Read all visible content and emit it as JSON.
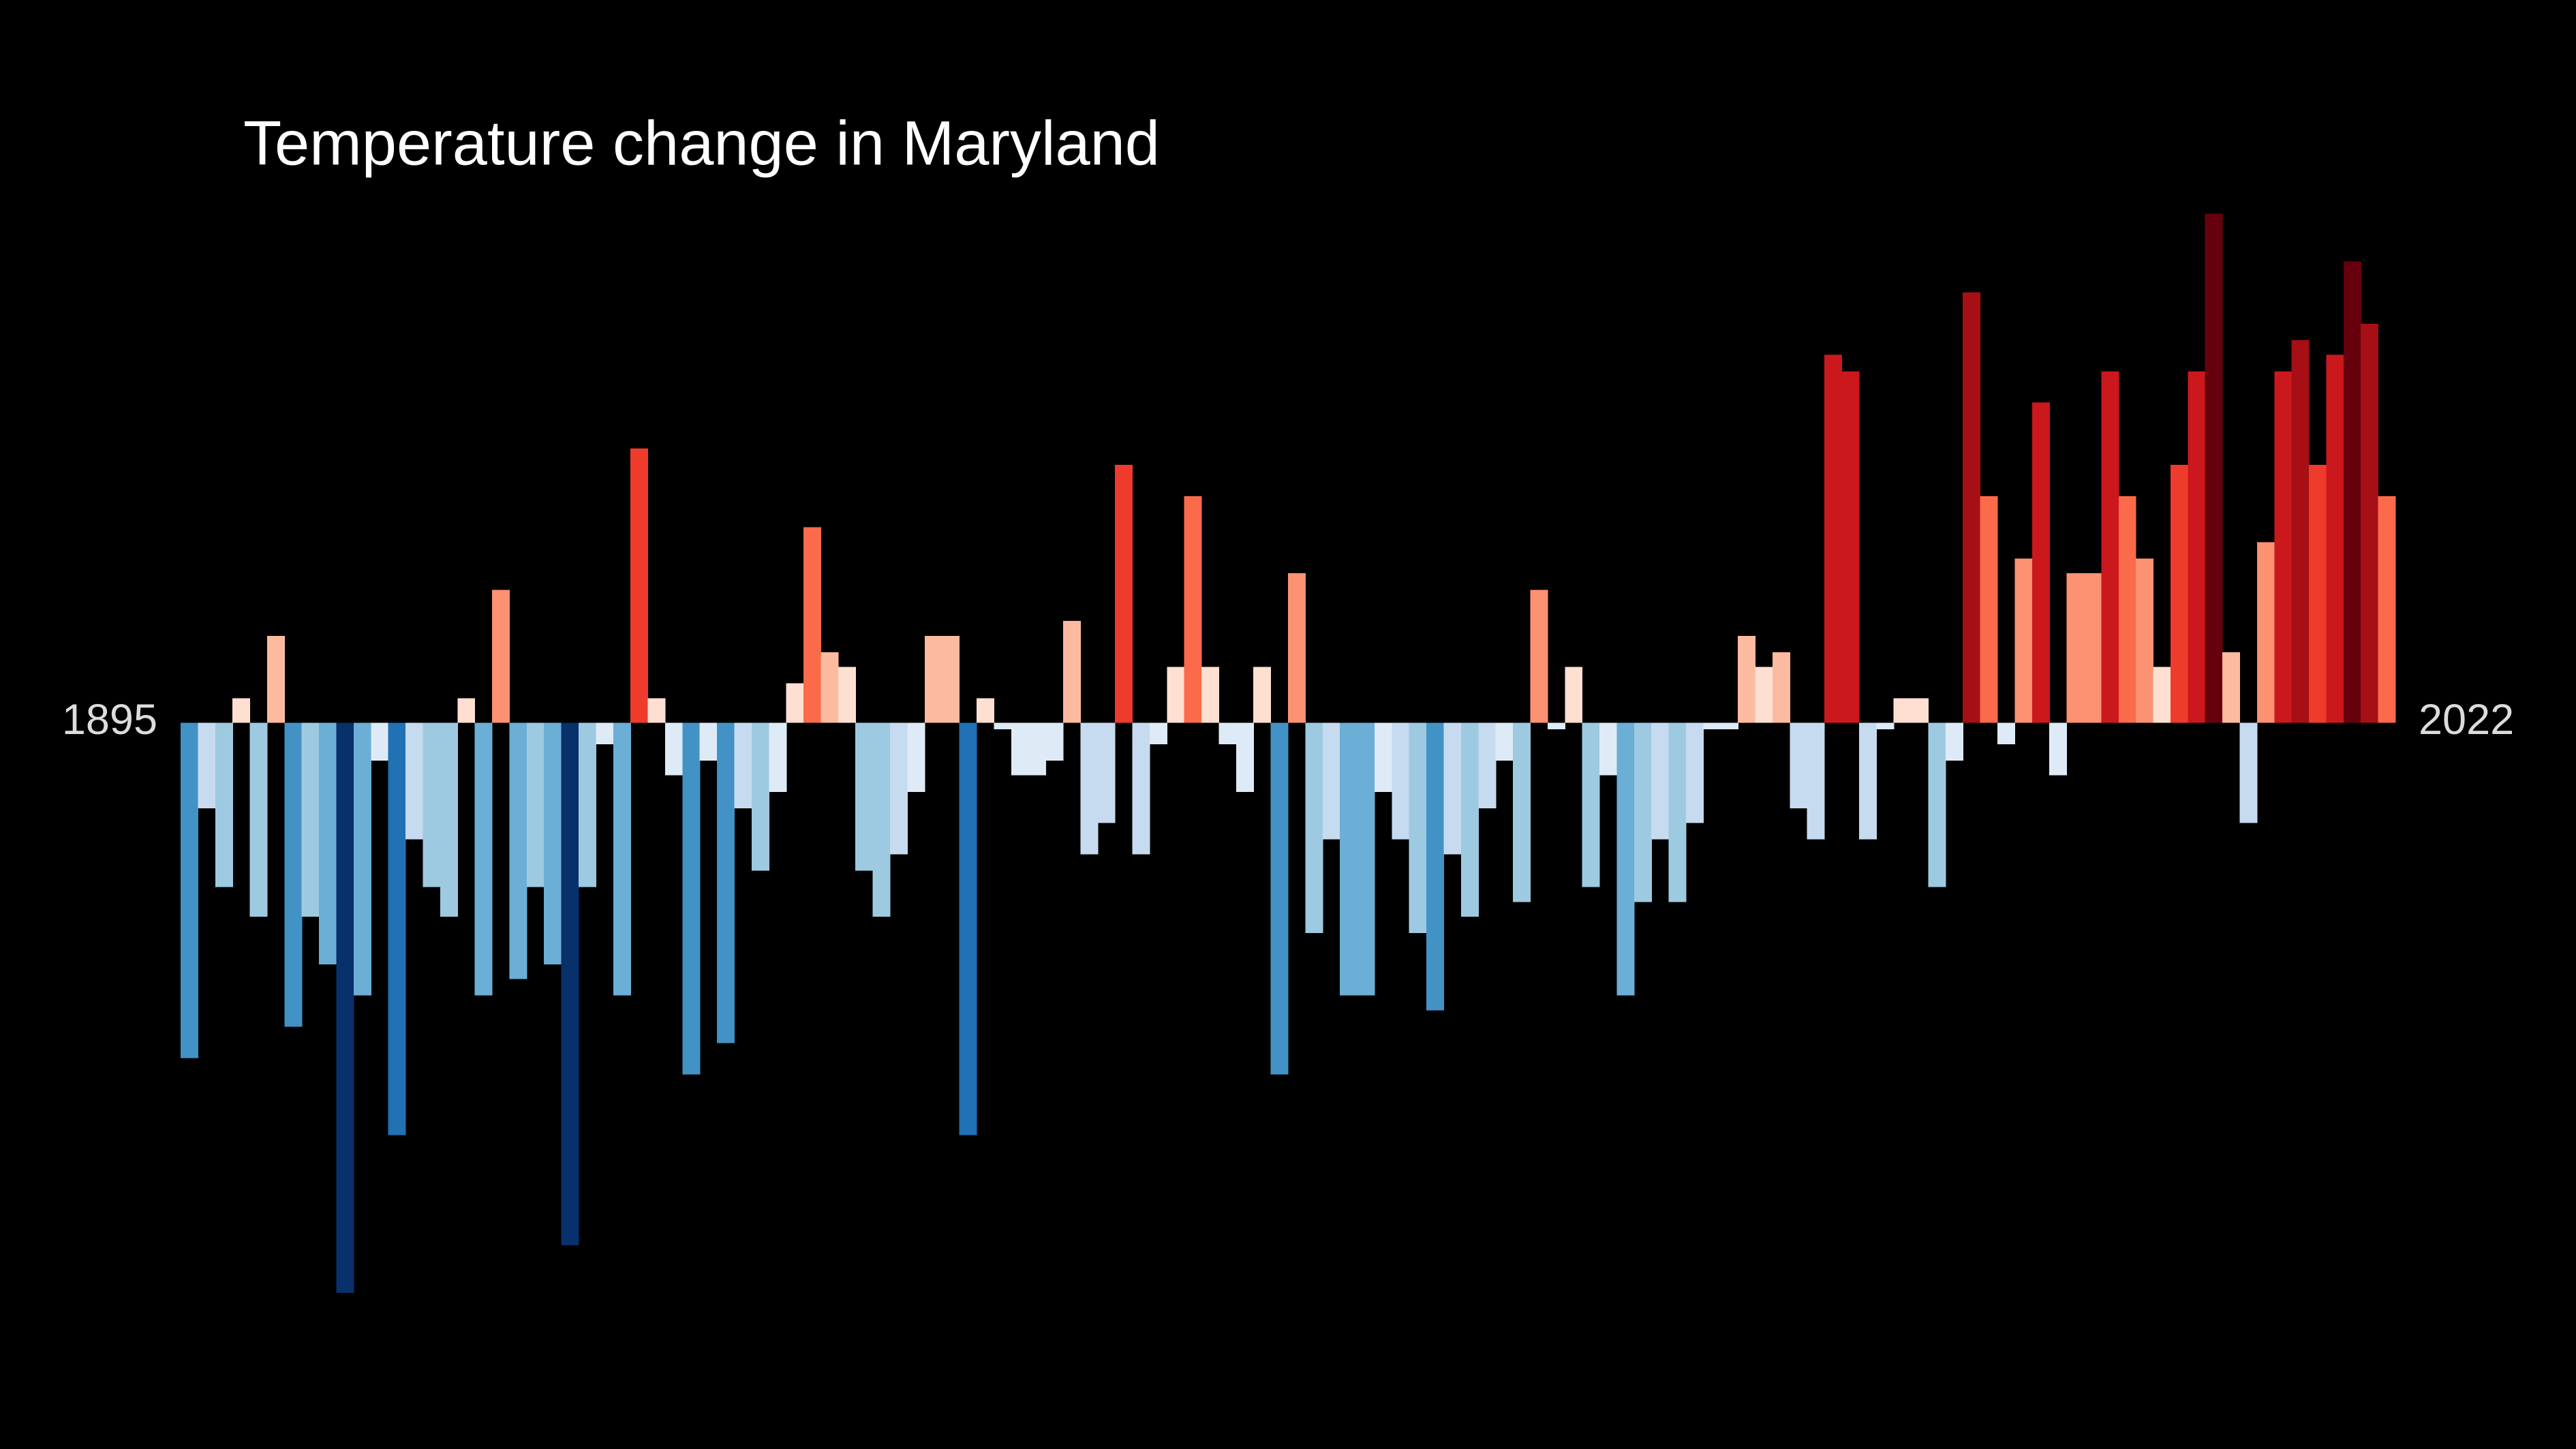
{
  "chart_data": {
    "type": "bar",
    "title": "Temperature change in Maryland",
    "categories": [
      "1895",
      null,
      null,
      null,
      null,
      null,
      null,
      null,
      null,
      null,
      null,
      null,
      null,
      null,
      null,
      null,
      null,
      null,
      null,
      null,
      null,
      null,
      null,
      null,
      null,
      null,
      null,
      null,
      null,
      null,
      null,
      null,
      null,
      null,
      null,
      null,
      null,
      null,
      null,
      null,
      null,
      null,
      null,
      null,
      null,
      null,
      null,
      null,
      null,
      null,
      null,
      null,
      null,
      null,
      null,
      null,
      null,
      null,
      null,
      null,
      null,
      null,
      null,
      null,
      null,
      null,
      null,
      null,
      null,
      null,
      null,
      null,
      null,
      null,
      null,
      null,
      null,
      null,
      null,
      null,
      null,
      null,
      null,
      null,
      null,
      null,
      null,
      null,
      null,
      null,
      null,
      null,
      null,
      null,
      null,
      null,
      null,
      null,
      null,
      null,
      null,
      null,
      null,
      null,
      null,
      null,
      null,
      null,
      null,
      null,
      null,
      null,
      null,
      null,
      null,
      null,
      null,
      null,
      null,
      null,
      null,
      null,
      null,
      null,
      null,
      null,
      null,
      "2022"
    ],
    "values": [
      -2.04,
      -0.52,
      -1.0,
      0.15,
      -1.18,
      0.53,
      -1.85,
      -1.18,
      -1.47,
      -3.47,
      -1.66,
      -0.23,
      -2.51,
      -0.71,
      -1.0,
      -1.18,
      0.15,
      -1.66,
      0.81,
      -1.56,
      -1.0,
      -1.47,
      -3.18,
      -1.0,
      -0.13,
      -1.66,
      1.67,
      0.15,
      -0.32,
      -2.14,
      -0.23,
      -1.95,
      -0.52,
      -0.9,
      -0.42,
      0.24,
      1.19,
      0.43,
      0.34,
      -0.9,
      -1.18,
      -0.8,
      -0.42,
      0.53,
      0.53,
      -2.51,
      0.15,
      -0.04,
      -0.32,
      -0.32,
      -0.23,
      0.62,
      -0.8,
      -0.61,
      1.57,
      -0.8,
      -0.13,
      0.34,
      1.38,
      0.34,
      -0.13,
      -0.42,
      0.34,
      -2.14,
      0.91,
      -1.28,
      -0.71,
      -1.66,
      -1.66,
      -0.42,
      -0.71,
      -1.28,
      -1.75,
      -0.8,
      -1.18,
      -0.52,
      -0.23,
      -1.09,
      0.81,
      -0.04,
      0.34,
      -1.0,
      -0.32,
      -1.66,
      -1.09,
      -0.71,
      -1.09,
      -0.61,
      -0.04,
      -0.04,
      0.53,
      0.34,
      0.43,
      -0.52,
      -0.71,
      2.24,
      2.14,
      -0.71,
      -0.04,
      0.15,
      0.15,
      -1.0,
      -0.23,
      2.62,
      1.38,
      -0.13,
      1.0,
      1.95,
      -0.32,
      0.91,
      0.91,
      2.14,
      1.38,
      1.0,
      0.34,
      1.57,
      2.14,
      3.1,
      0.43,
      -0.61,
      1.1,
      2.14,
      2.33,
      1.57,
      2.24,
      2.81,
      2.43,
      1.38
    ],
    "colormap": [
      "#08306b",
      "#08519c",
      "#2171b5",
      "#4292c6",
      "#6baed6",
      "#9ecae1",
      "#c6dbef",
      "#deebf7",
      "#fee0d2",
      "#fcbba1",
      "#fc9272",
      "#fb6a4a",
      "#ef3b2c",
      "#cb181d",
      "#a50f15",
      "#67000d"
    ],
    "ylim": [
      -4.42,
      4.4
    ]
  }
}
